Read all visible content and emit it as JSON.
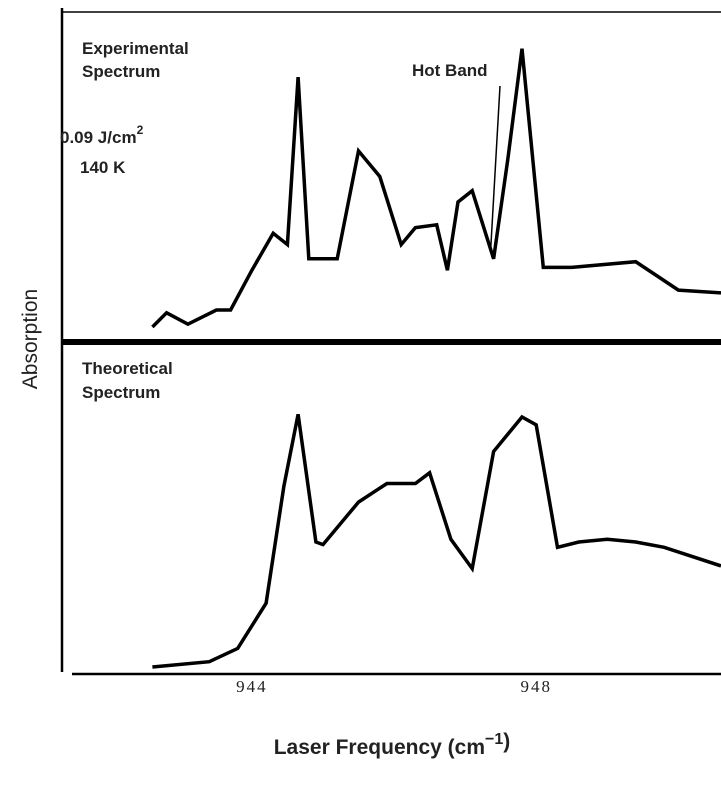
{
  "chart_data": {
    "type": "line",
    "xlabel": "Laser Frequency (cm",
    "xlabel_sup": "−1",
    "xlabel_close": ")",
    "ylabel": "Absorption",
    "xlim": [
      941.3,
      950.6
    ],
    "x_ticks": [
      "944",
      "948"
    ],
    "grid": false,
    "panels": [
      {
        "title_lines": [
          "Experimental",
          "Spectrum"
        ],
        "annotations": [
          {
            "text": "0.09 J/cm",
            "sup": "2"
          },
          {
            "text": "140 K"
          }
        ],
        "callout": {
          "text": "Hot Band",
          "x": 947.4
        },
        "ylim": [
          0,
          1
        ],
        "x": [
          942.6,
          942.8,
          943.1,
          943.5,
          943.7,
          944.0,
          944.3,
          944.5,
          944.65,
          944.8,
          945.2,
          945.5,
          945.8,
          946.1,
          946.3,
          946.6,
          946.75,
          946.9,
          947.1,
          947.4,
          947.6,
          947.8,
          948.1,
          948.5,
          949.4,
          950.0,
          950.6
        ],
        "y": [
          0.0,
          0.05,
          0.01,
          0.06,
          0.06,
          0.2,
          0.33,
          0.29,
          0.88,
          0.24,
          0.24,
          0.62,
          0.53,
          0.29,
          0.35,
          0.36,
          0.2,
          0.44,
          0.48,
          0.24,
          0.59,
          0.98,
          0.21,
          0.21,
          0.23,
          0.13,
          0.12
        ]
      },
      {
        "title_lines": [
          "Theoretical",
          "Spectrum"
        ],
        "annotations": [],
        "ylim": [
          0,
          1
        ],
        "x": [
          942.6,
          943.4,
          943.8,
          944.2,
          944.45,
          944.65,
          944.9,
          945.0,
          945.5,
          945.9,
          946.3,
          946.5,
          946.8,
          947.1,
          947.4,
          947.8,
          948.0,
          948.3,
          948.6,
          949.0,
          949.4,
          949.8,
          950.6
        ],
        "y": [
          0.0,
          0.02,
          0.07,
          0.24,
          0.68,
          0.95,
          0.47,
          0.46,
          0.62,
          0.69,
          0.69,
          0.73,
          0.48,
          0.37,
          0.81,
          0.94,
          0.91,
          0.45,
          0.47,
          0.48,
          0.47,
          0.45,
          0.38
        ]
      }
    ]
  }
}
